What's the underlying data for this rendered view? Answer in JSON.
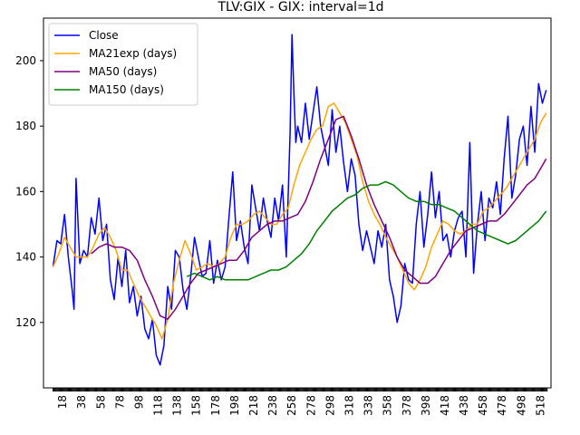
{
  "chart_data": {
    "type": "line",
    "title": "TLV:GIX - GIX: interval=1d",
    "xlabel": "",
    "ylabel": "",
    "xlim": [
      -2,
      529
    ],
    "ylim": [
      100,
      213
    ],
    "x_ticks": [
      18,
      38,
      58,
      78,
      98,
      118,
      138,
      158,
      178,
      198,
      218,
      238,
      258,
      278,
      298,
      318,
      338,
      358,
      378,
      398,
      418,
      438,
      458,
      478,
      498,
      518
    ],
    "y_ticks": [
      120,
      140,
      160,
      180,
      200
    ],
    "grid": false,
    "legend_position": "upper-left",
    "x_start": 8,
    "x_end": 525,
    "series": [
      {
        "name": "Close",
        "color": "#0000ff",
        "x": [
          8,
          12,
          16,
          20,
          24,
          28,
          30,
          32,
          36,
          40,
          44,
          48,
          52,
          56,
          60,
          64,
          68,
          72,
          76,
          80,
          84,
          88,
          92,
          96,
          100,
          104,
          108,
          112,
          116,
          120,
          124,
          128,
          132,
          136,
          140,
          144,
          148,
          152,
          156,
          160,
          164,
          168,
          172,
          176,
          180,
          184,
          188,
          192,
          196,
          200,
          204,
          208,
          212,
          216,
          220,
          224,
          228,
          232,
          236,
          240,
          244,
          248,
          252,
          256,
          258,
          260,
          262,
          264,
          268,
          272,
          276,
          280,
          284,
          288,
          292,
          296,
          300,
          304,
          308,
          312,
          316,
          320,
          324,
          328,
          332,
          336,
          340,
          344,
          348,
          352,
          356,
          360,
          364,
          368,
          372,
          376,
          380,
          384,
          388,
          392,
          396,
          400,
          404,
          408,
          412,
          416,
          420,
          424,
          428,
          432,
          436,
          440,
          444,
          448,
          452,
          456,
          460,
          464,
          468,
          472,
          476,
          480,
          484,
          488,
          492,
          496,
          500,
          504,
          508,
          512,
          516,
          520,
          524
        ],
        "y": [
          137,
          145,
          144,
          153,
          140,
          130,
          124,
          164,
          138,
          142,
          140,
          152,
          147,
          158,
          145,
          150,
          133,
          127,
          140,
          131,
          142,
          126,
          131,
          122,
          128,
          118,
          115,
          121,
          110,
          107,
          113,
          131,
          124,
          142,
          140,
          130,
          124,
          134,
          146,
          140,
          134,
          135,
          145,
          132,
          139,
          133,
          137,
          152,
          166,
          145,
          151,
          143,
          138,
          162,
          155,
          148,
          158,
          151,
          146,
          158,
          151,
          162,
          140,
          178,
          208,
          190,
          175,
          180,
          175,
          187,
          176,
          184,
          192,
          180,
          174,
          168,
          185,
          172,
          180,
          169,
          160,
          170,
          165,
          150,
          142,
          148,
          143,
          138,
          148,
          143,
          150,
          133,
          128,
          120,
          125,
          138,
          133,
          132,
          150,
          160,
          143,
          153,
          166,
          152,
          160,
          145,
          147,
          140,
          148,
          152,
          154,
          140,
          175,
          135,
          150,
          160,
          145,
          158,
          155,
          163,
          153,
          170,
          183,
          158,
          165,
          176,
          180,
          168,
          186,
          172,
          193,
          187,
          191
        ]
      },
      {
        "name": "MA21exp (days)",
        "color": "#ffa500",
        "x": [
          8,
          14,
          20,
          26,
          32,
          38,
          44,
          50,
          56,
          62,
          68,
          74,
          80,
          86,
          92,
          98,
          104,
          110,
          116,
          122,
          128,
          134,
          140,
          146,
          152,
          158,
          164,
          170,
          176,
          182,
          188,
          194,
          200,
          206,
          212,
          218,
          224,
          230,
          236,
          242,
          248,
          254,
          260,
          266,
          272,
          278,
          284,
          290,
          296,
          302,
          308,
          314,
          320,
          326,
          332,
          338,
          344,
          350,
          356,
          362,
          368,
          374,
          380,
          386,
          392,
          398,
          404,
          410,
          416,
          422,
          428,
          434,
          440,
          446,
          452,
          458,
          464,
          470,
          476,
          482,
          488,
          494,
          500,
          506,
          512,
          518,
          524
        ],
        "y": [
          137,
          141,
          146,
          143,
          140,
          140,
          140,
          143,
          147,
          149,
          146,
          142,
          136,
          136,
          132,
          128,
          125,
          122,
          119,
          115,
          121,
          132,
          139,
          145,
          141,
          136,
          137,
          138,
          137,
          138,
          140,
          146,
          150,
          150,
          151,
          153,
          154,
          152,
          150,
          150,
          153,
          155,
          162,
          168,
          172,
          176,
          179,
          180,
          186,
          187,
          184,
          181,
          176,
          171,
          163,
          157,
          153,
          150,
          146,
          143,
          140,
          136,
          132,
          130,
          133,
          137,
          143,
          147,
          151,
          150,
          148,
          147,
          148,
          150,
          150,
          154,
          155,
          157,
          159,
          161,
          164,
          167,
          170,
          173,
          176,
          181,
          184
        ]
      },
      {
        "name": "MA50 (days)",
        "color": "#800080",
        "x": [
          48,
          56,
          64,
          72,
          80,
          88,
          96,
          104,
          112,
          120,
          128,
          136,
          144,
          152,
          160,
          168,
          176,
          184,
          192,
          200,
          208,
          216,
          224,
          232,
          240,
          248,
          256,
          264,
          272,
          280,
          288,
          296,
          304,
          312,
          320,
          328,
          336,
          344,
          352,
          360,
          368,
          376,
          384,
          392,
          400,
          408,
          416,
          424,
          432,
          440,
          448,
          456,
          464,
          472,
          480,
          488,
          496,
          504,
          512,
          520,
          524
        ],
        "y": [
          141,
          143,
          144,
          143,
          143,
          142,
          139,
          133,
          128,
          122,
          121,
          124,
          128,
          132,
          135,
          136,
          137,
          138,
          139,
          139,
          142,
          146,
          148,
          150,
          151,
          151,
          152,
          153,
          157,
          163,
          170,
          176,
          182,
          183,
          177,
          170,
          162,
          156,
          151,
          146,
          140,
          136,
          134,
          132,
          132,
          134,
          138,
          142,
          145,
          148,
          149,
          150,
          151,
          151,
          153,
          156,
          159,
          162,
          164,
          168,
          170
        ]
      },
      {
        "name": "MA150 (days)",
        "color": "#008000",
        "x": [
          148,
          156,
          164,
          172,
          180,
          188,
          196,
          204,
          212,
          220,
          228,
          236,
          244,
          252,
          260,
          268,
          276,
          284,
          292,
          300,
          308,
          316,
          324,
          332,
          340,
          348,
          356,
          364,
          372,
          380,
          388,
          396,
          404,
          412,
          420,
          428,
          436,
          444,
          452,
          460,
          468,
          476,
          484,
          492,
          500,
          508,
          516,
          524
        ],
        "y": [
          134,
          135,
          134,
          133,
          134,
          133,
          133,
          133,
          133,
          134,
          135,
          136,
          136,
          137,
          139,
          141,
          144,
          148,
          151,
          154,
          156,
          158,
          159,
          161,
          162,
          162,
          163,
          162,
          160,
          158,
          157,
          157,
          156,
          156,
          155,
          154,
          152,
          150,
          148,
          147,
          146,
          145,
          144,
          145,
          147,
          149,
          151,
          154
        ]
      }
    ]
  }
}
